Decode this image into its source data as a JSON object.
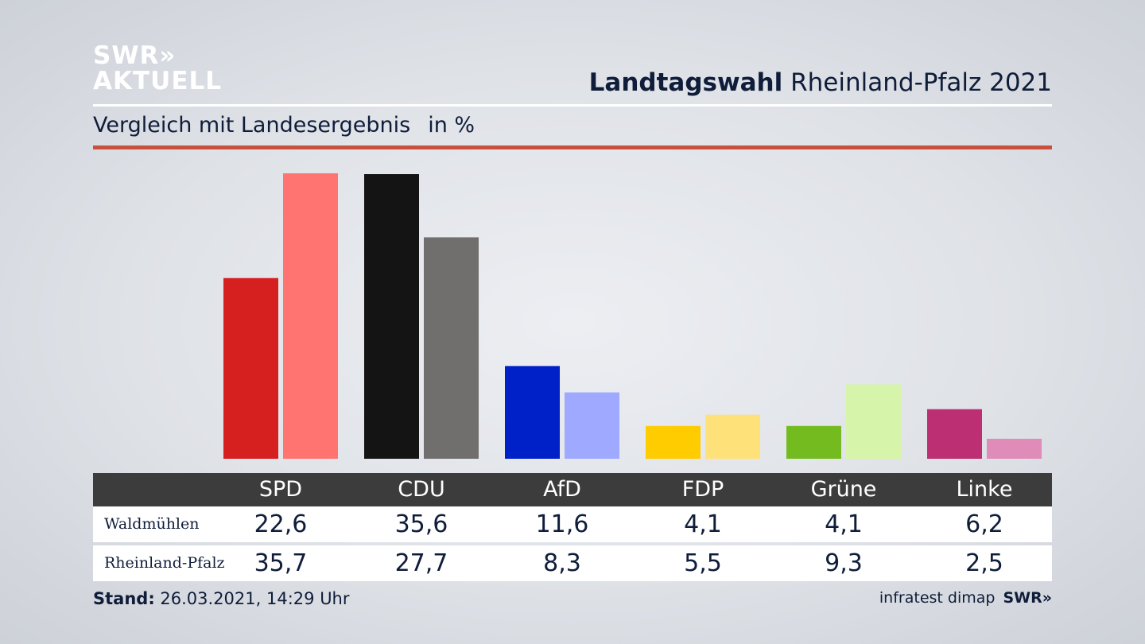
{
  "logo": {
    "line1": "SWR»",
    "line2": "AKTUELL"
  },
  "header": {
    "title_bold": "Landtagswahl",
    "title_rest": "Rheinland-Pfalz 2021",
    "subtitle": "Vergleich mit Landesergebnis",
    "unit": "in %"
  },
  "chart_data": {
    "type": "bar",
    "categories": [
      "SPD",
      "CDU",
      "AfD",
      "FDP",
      "Grüne",
      "Linke"
    ],
    "series": [
      {
        "name": "Waldmühlen",
        "values": [
          22.6,
          35.6,
          11.6,
          4.1,
          4.1,
          6.2
        ]
      },
      {
        "name": "Rheinland-Pfalz",
        "values": [
          35.7,
          27.7,
          8.3,
          5.5,
          9.3,
          2.5
        ]
      }
    ],
    "display_values": [
      [
        "22,6",
        "35,6",
        "11,6",
        "4,1",
        "4,1",
        "6,2"
      ],
      [
        "35,7",
        "27,7",
        "8,3",
        "5,5",
        "9,3",
        "2,5"
      ]
    ],
    "colors": {
      "primary": [
        "#d62020",
        "#141414",
        "#0021c7",
        "#ffcc00",
        "#74bb1f",
        "#bc2f73"
      ],
      "secondary": [
        "#ff7370",
        "#716f6e",
        "#9ea9ff",
        "#ffe17a",
        "#d6f5ab",
        "#e08cb9"
      ]
    },
    "ylim": [
      0,
      36
    ]
  },
  "footer": {
    "stand_label": "Stand:",
    "stand_value": "26.03.2021, 14:29 Uhr",
    "source": "infratest dimap",
    "source_logo": "SWR»"
  }
}
